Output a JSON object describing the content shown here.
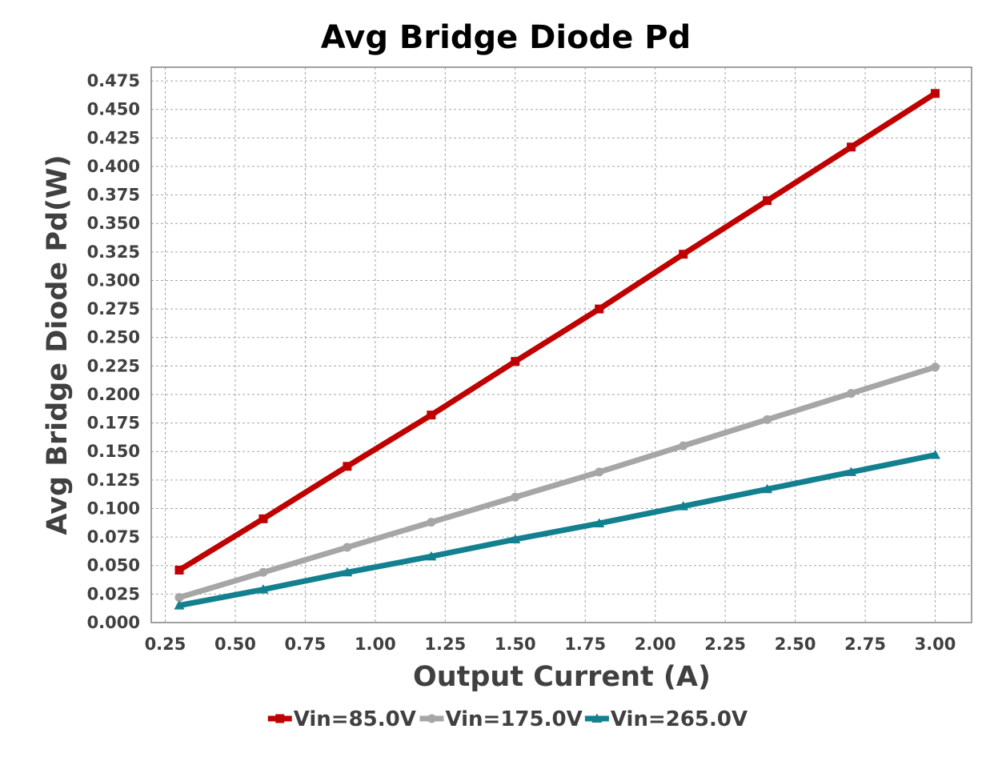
{
  "chart_data": {
    "type": "line",
    "title": "Avg Bridge Diode Pd",
    "xlabel": "Output Current (A)",
    "ylabel": "Avg Bridge Diode Pd(W)",
    "xlim": [
      0.2,
      3.13
    ],
    "ylim": [
      0,
      0.487
    ],
    "xticks": [
      0.25,
      0.5,
      0.75,
      1.0,
      1.25,
      1.5,
      1.75,
      2.0,
      2.25,
      2.5,
      2.75,
      3.0
    ],
    "xtick_labels": [
      "0.25",
      "0.50",
      "0.75",
      "1.00",
      "1.25",
      "1.50",
      "1.75",
      "2.00",
      "2.25",
      "2.50",
      "2.75",
      "3.00"
    ],
    "yticks": [
      0,
      0.025,
      0.05,
      0.075,
      0.1,
      0.125,
      0.15,
      0.175,
      0.2,
      0.225,
      0.25,
      0.275,
      0.3,
      0.325,
      0.35,
      0.375,
      0.4,
      0.425,
      0.45,
      0.475
    ],
    "ytick_labels": [
      "0.000",
      "0.025",
      "0.050",
      "0.075",
      "0.100",
      "0.125",
      "0.150",
      "0.175",
      "0.200",
      "0.225",
      "0.250",
      "0.275",
      "0.300",
      "0.325",
      "0.350",
      "0.375",
      "0.400",
      "0.425",
      "0.450",
      "0.475"
    ],
    "grid": true,
    "legend_position": "bottom",
    "x": [
      0.3,
      0.6,
      0.9,
      1.2,
      1.5,
      1.8,
      2.1,
      2.4,
      2.7,
      3.0
    ],
    "series": [
      {
        "name": "Vin=85.0V",
        "color": "#c00000",
        "marker": "square",
        "values": [
          0.046,
          0.091,
          0.137,
          0.182,
          0.229,
          0.275,
          0.323,
          0.37,
          0.417,
          0.464
        ]
      },
      {
        "name": "Vin=175.0V",
        "color": "#a6a6a6",
        "marker": "circle",
        "values": [
          0.022,
          0.044,
          0.066,
          0.088,
          0.11,
          0.132,
          0.155,
          0.178,
          0.201,
          0.224
        ]
      },
      {
        "name": "Vin=265.0V",
        "color": "#12808f",
        "marker": "triangle",
        "values": [
          0.015,
          0.029,
          0.044,
          0.058,
          0.073,
          0.087,
          0.102,
          0.117,
          0.132,
          0.147
        ]
      }
    ]
  }
}
